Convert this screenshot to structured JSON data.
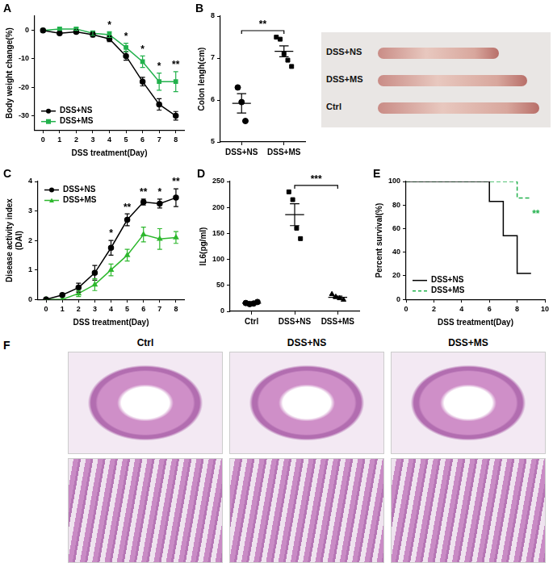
{
  "chart_data": [
    {
      "panel": "A",
      "type": "line",
      "x": [
        0,
        1,
        2,
        3,
        4,
        5,
        6,
        7,
        8
      ],
      "xlim": [
        -0.5,
        8.5
      ],
      "xticks": [
        0,
        1,
        2,
        3,
        4,
        5,
        6,
        7,
        8
      ],
      "ylim": [
        -35,
        5
      ],
      "yticks": [
        -30,
        -20,
        -10,
        0
      ],
      "x_label": "DSS treatment(Day)",
      "y_label": "Body weight change(%)",
      "legend": "lower left",
      "series": [
        {
          "name": "DSS+NS",
          "color": "#000000",
          "marker": "circle",
          "line_style": "solid",
          "values": [
            0,
            -1,
            -0.5,
            -1.5,
            -3,
            -9,
            -18,
            -26,
            -30
          ],
          "errors": [
            0,
            0.5,
            0.5,
            0.8,
            1,
            1.5,
            1.5,
            2,
            1.5
          ]
        },
        {
          "name": "DSS+MS",
          "color": "#22b14c",
          "marker": "square",
          "line_style": "solid",
          "values": [
            0,
            0.5,
            0.5,
            -1,
            -1.5,
            -6,
            -11,
            -18,
            -18
          ],
          "errors": [
            0,
            0.5,
            0.5,
            0.8,
            1,
            1.5,
            2,
            3,
            3.5
          ]
        }
      ],
      "annotations": [
        {
          "x": 4,
          "text": "*"
        },
        {
          "x": 5,
          "text": "*"
        },
        {
          "x": 6,
          "text": "*"
        },
        {
          "x": 7,
          "text": "*"
        },
        {
          "x": 8,
          "text": "**"
        }
      ]
    },
    {
      "panel": "B",
      "type": "scatter",
      "ylim": [
        5,
        8
      ],
      "yticks": [
        5,
        6,
        7,
        8
      ],
      "y_label": "Colon lengh(cm)",
      "series": [
        {
          "name": "DSS+NS",
          "color": "#000000",
          "marker": "circle",
          "values": [
            6.3,
            5.95,
            5.5
          ],
          "mean": 5.92,
          "error": 0.23
        },
        {
          "name": "DSS+MS",
          "color": "#000000",
          "marker": "square",
          "values": [
            7.5,
            7.45,
            7.1,
            6.95,
            6.8
          ],
          "mean": 7.16,
          "error": 0.13
        }
      ],
      "annotations": [
        {
          "from": "DSS+NS",
          "to": "DSS+MS",
          "text": "**"
        }
      ]
    },
    {
      "panel": "C",
      "type": "line",
      "x": [
        0,
        1,
        2,
        3,
        4,
        5,
        6,
        7,
        8
      ],
      "xlim": [
        -0.5,
        8.5
      ],
      "xticks": [
        0,
        1,
        2,
        3,
        4,
        5,
        6,
        7,
        8
      ],
      "ylim": [
        0,
        4
      ],
      "yticks": [
        0,
        1,
        2,
        3,
        4
      ],
      "x_label": "DSS treatment(Day)",
      "y_label": [
        "Disease activity index",
        "(DAI)"
      ],
      "legend": "upper left",
      "series": [
        {
          "name": "DSS+NS",
          "color": "#000000",
          "marker": "circle",
          "line_style": "solid",
          "values": [
            0,
            0.15,
            0.4,
            0.9,
            1.75,
            2.7,
            3.3,
            3.25,
            3.45
          ],
          "errors": [
            0,
            0.05,
            0.15,
            0.25,
            0.25,
            0.2,
            0.1,
            0.15,
            0.3
          ]
        },
        {
          "name": "DSS+MS",
          "color": "#2eb82e",
          "marker": "triangle",
          "line_style": "solid",
          "values": [
            0,
            0,
            0.2,
            0.5,
            1.0,
            1.5,
            2.2,
            2.05,
            2.1
          ],
          "errors": [
            0,
            0,
            0.1,
            0.2,
            0.2,
            0.2,
            0.25,
            0.35,
            0.2
          ]
        }
      ],
      "annotations": [
        {
          "x": 4,
          "text": "*"
        },
        {
          "x": 5,
          "text": "**"
        },
        {
          "x": 6,
          "text": "**"
        },
        {
          "x": 7,
          "text": "*"
        },
        {
          "x": 8,
          "text": "**"
        }
      ]
    },
    {
      "panel": "D",
      "type": "scatter",
      "ylim": [
        0,
        250
      ],
      "yticks": [
        0,
        50,
        100,
        150,
        200,
        250
      ],
      "y_label": "IL6(pg/ml)",
      "series": [
        {
          "name": "Ctrl",
          "color": "#000000",
          "marker": "circle",
          "values": [
            16,
            14,
            15,
            18
          ],
          "mean": 15.75,
          "error": 1
        },
        {
          "name": "DSS+NS",
          "color": "#000000",
          "marker": "square",
          "values": [
            230,
            215,
            160,
            140
          ],
          "mean": 186,
          "error": 21
        },
        {
          "name": "DSS+MS",
          "color": "#000000",
          "marker": "triangle",
          "values": [
            33,
            28,
            25,
            22
          ],
          "mean": 27,
          "error": 2.4
        }
      ],
      "annotations": [
        {
          "from": "DSS+NS",
          "to": "DSS+MS",
          "text": "***"
        }
      ]
    },
    {
      "panel": "E",
      "type": "step",
      "xlim": [
        0,
        10
      ],
      "xticks": [
        0,
        2,
        4,
        6,
        8,
        10
      ],
      "ylim": [
        0,
        100
      ],
      "yticks": [
        0,
        20,
        40,
        60,
        80,
        100
      ],
      "x_label": "DSS treatment(Day)",
      "y_label": "Percent survival(%)",
      "legend": "lower left",
      "series": [
        {
          "name": "DSS+NS",
          "color": "#000000",
          "line_style": "solid",
          "x": [
            0,
            6,
            7,
            8,
            9
          ],
          "values": [
            100,
            83,
            54,
            22,
            22
          ]
        },
        {
          "name": "DSS+MS",
          "color": "#22b14c",
          "line_style": "dashed",
          "x": [
            0,
            8,
            9
          ],
          "values": [
            100,
            86,
            86
          ]
        }
      ],
      "annotations": [
        {
          "series": "DSS+MS",
          "text": "**"
        }
      ]
    }
  ],
  "images": [
    {
      "labels": [
        "DSS+NS",
        "DSS+MS",
        "Ctrl"
      ]
    },
    {
      "panel": "F",
      "labels": [
        "Ctrl",
        "DSS+NS",
        "DSS+MS"
      ]
    }
  ]
}
